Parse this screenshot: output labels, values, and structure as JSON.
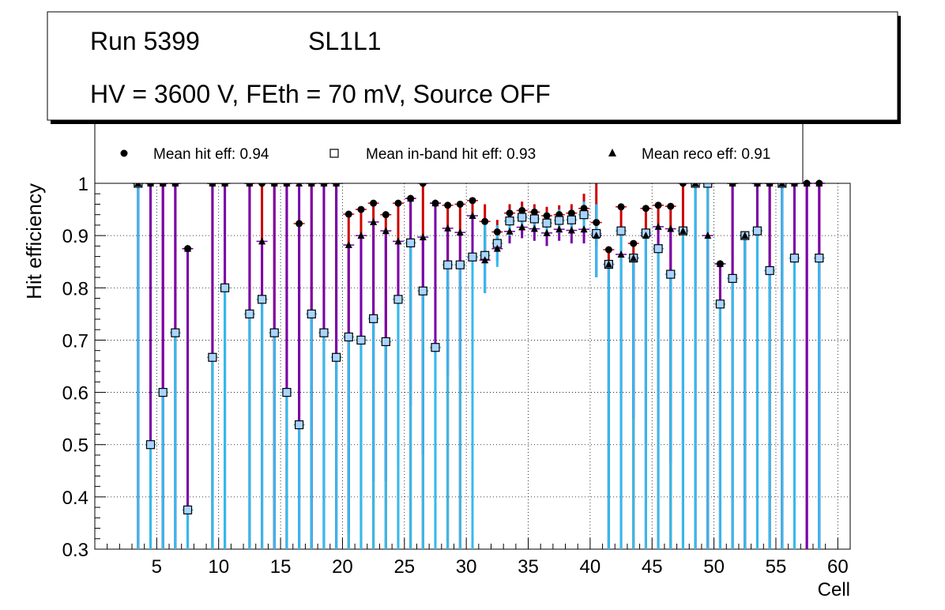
{
  "colors": {
    "hit_error": "#cc0000",
    "inband_error": "#33bbee",
    "reco_error": "#7700aa",
    "marker": "#000000",
    "inband_fill": "#aad4ff",
    "grid": "#000000"
  },
  "chart_data": {
    "type": "scatter",
    "title_lines": [
      "Run 5399",
      "SL1L1",
      "HV = 3600 V, FEth = 70 mV, Source OFF"
    ],
    "xlabel": "Cell",
    "ylabel": "Hit efficiency",
    "xlim": [
      0,
      61
    ],
    "ylim": [
      0.3,
      1.0
    ],
    "xticks": [
      5,
      10,
      15,
      20,
      25,
      30,
      35,
      40,
      45,
      50,
      55,
      60
    ],
    "yticks": [
      0.3,
      0.4,
      0.5,
      0.6,
      0.7,
      0.8,
      0.9,
      1.0
    ],
    "ytick_labels": [
      "0.3",
      "0.4",
      "0.5",
      "0.6",
      "0.7",
      "0.8",
      "0.9",
      "1"
    ],
    "grid": true,
    "legend": {
      "placement": "top",
      "entries": [
        {
          "marker": "circle",
          "label": "Mean hit  eff: 0.94"
        },
        {
          "marker": "open-square",
          "label": "Mean in-band hit eff: 0.93"
        },
        {
          "marker": "triangle",
          "label": "Mean reco eff: 0.91"
        }
      ]
    },
    "series": [
      {
        "name": "hit efficiency",
        "marker": "circle",
        "points": [
          {
            "x": 3.5,
            "y": 1.0,
            "lo": 0.3
          },
          {
            "x": 4.5,
            "y": 1.0,
            "lo": 0.3
          },
          {
            "x": 5.5,
            "y": 1.0,
            "lo": 0.3
          },
          {
            "x": 6.5,
            "y": 1.0,
            "lo": 0.3
          },
          {
            "x": 7.5,
            "y": 0.875,
            "lo": 0.3
          },
          {
            "x": 9.5,
            "y": 1.0,
            "lo": 0.3
          },
          {
            "x": 10.5,
            "y": 1.0,
            "lo": 0.3
          },
          {
            "x": 12.5,
            "y": 1.0,
            "lo": 0.3
          },
          {
            "x": 13.5,
            "y": 1.0,
            "lo": 0.3
          },
          {
            "x": 14.5,
            "y": 1.0,
            "lo": 0.3
          },
          {
            "x": 15.5,
            "y": 1.0,
            "lo": 0.3
          },
          {
            "x": 16.5,
            "y": 0.923,
            "lo": 0.3
          },
          {
            "x": 17.5,
            "y": 1.0,
            "lo": 0.3
          },
          {
            "x": 18.5,
            "y": 1.0,
            "lo": 0.3
          },
          {
            "x": 19.5,
            "y": 1.0,
            "lo": 0.3
          },
          {
            "x": 20.5,
            "y": 0.941,
            "lo": 0.3
          },
          {
            "x": 21.5,
            "y": 0.95,
            "lo": 0.3
          },
          {
            "x": 22.5,
            "y": 0.962,
            "lo": 0.3
          },
          {
            "x": 23.5,
            "y": 0.94,
            "lo": 0.3
          },
          {
            "x": 24.5,
            "y": 0.962,
            "lo": 0.3
          },
          {
            "x": 25.5,
            "y": 0.971,
            "lo": 0.3
          },
          {
            "x": 26.5,
            "y": 1.0,
            "lo": 0.3
          },
          {
            "x": 27.5,
            "y": 0.962,
            "lo": 0.3
          },
          {
            "x": 28.5,
            "y": 0.958,
            "lo": 0.3
          },
          {
            "x": 29.5,
            "y": 0.96,
            "lo": 0.3
          },
          {
            "x": 30.5,
            "y": 0.967,
            "lo": 0.3
          },
          {
            "x": 31.5,
            "y": 0.927,
            "lo": 0.86,
            "hi": 0.96
          },
          {
            "x": 32.5,
            "y": 0.907,
            "lo": 0.88,
            "hi": 0.93
          },
          {
            "x": 33.5,
            "y": 0.943,
            "lo": 0.92,
            "hi": 0.96
          },
          {
            "x": 34.5,
            "y": 0.948,
            "lo": 0.93,
            "hi": 0.965
          },
          {
            "x": 35.5,
            "y": 0.945,
            "lo": 0.925,
            "hi": 0.96
          },
          {
            "x": 36.5,
            "y": 0.938,
            "lo": 0.92,
            "hi": 0.955
          },
          {
            "x": 37.5,
            "y": 0.94,
            "lo": 0.92,
            "hi": 0.958
          },
          {
            "x": 38.5,
            "y": 0.943,
            "lo": 0.925,
            "hi": 0.96
          },
          {
            "x": 39.5,
            "y": 0.952,
            "lo": 0.93,
            "hi": 0.98
          },
          {
            "x": 40.5,
            "y": 0.925,
            "lo": 0.88,
            "hi": 1.0
          },
          {
            "x": 41.5,
            "y": 0.873,
            "lo": 0.3
          },
          {
            "x": 42.5,
            "y": 0.955,
            "lo": 0.3
          },
          {
            "x": 43.5,
            "y": 0.885,
            "lo": 0.3
          },
          {
            "x": 44.5,
            "y": 0.952,
            "lo": 0.3
          },
          {
            "x": 45.5,
            "y": 0.958,
            "lo": 0.3
          },
          {
            "x": 46.5,
            "y": 0.956,
            "lo": 0.3
          },
          {
            "x": 47.5,
            "y": 1.0,
            "lo": 0.3
          },
          {
            "x": 48.5,
            "y": 1.0,
            "lo": 0.3
          },
          {
            "x": 49.5,
            "y": 1.0,
            "lo": 0.3
          },
          {
            "x": 50.5,
            "y": 0.846,
            "lo": 0.3
          },
          {
            "x": 51.5,
            "y": 1.0,
            "lo": 0.3
          },
          {
            "x": 52.5,
            "y": 0.9,
            "lo": 0.3
          },
          {
            "x": 53.5,
            "y": 1.0,
            "lo": 0.3
          },
          {
            "x": 54.5,
            "y": 1.0,
            "lo": 0.3
          },
          {
            "x": 55.5,
            "y": 1.0,
            "lo": 0.3
          },
          {
            "x": 56.5,
            "y": 1.0,
            "lo": 0.3
          },
          {
            "x": 57.5,
            "y": 1.0,
            "lo": 0.3
          },
          {
            "x": 58.5,
            "y": 1.0,
            "lo": 0.3
          }
        ]
      },
      {
        "name": "in-band hit efficiency",
        "marker": "open-square",
        "points": [
          {
            "x": 3.5,
            "y": 1.0,
            "lo": 0.3
          },
          {
            "x": 4.5,
            "y": 0.5,
            "lo": 0.3
          },
          {
            "x": 5.5,
            "y": 0.6,
            "lo": 0.3
          },
          {
            "x": 6.5,
            "y": 0.714,
            "lo": 0.3
          },
          {
            "x": 7.5,
            "y": 0.375,
            "lo": 0.3
          },
          {
            "x": 9.5,
            "y": 0.667,
            "lo": 0.3
          },
          {
            "x": 10.5,
            "y": 0.8,
            "lo": 0.3
          },
          {
            "x": 12.5,
            "y": 0.75,
            "lo": 0.3
          },
          {
            "x": 13.5,
            "y": 0.778,
            "lo": 0.3
          },
          {
            "x": 14.5,
            "y": 0.714,
            "lo": 0.3
          },
          {
            "x": 15.5,
            "y": 0.6,
            "lo": 0.3
          },
          {
            "x": 16.5,
            "y": 0.538,
            "lo": 0.3
          },
          {
            "x": 17.5,
            "y": 0.75,
            "lo": 0.3
          },
          {
            "x": 18.5,
            "y": 0.714,
            "lo": 0.3
          },
          {
            "x": 19.5,
            "y": 0.667,
            "lo": 0.3
          },
          {
            "x": 20.5,
            "y": 0.706,
            "lo": 0.3
          },
          {
            "x": 21.5,
            "y": 0.7,
            "lo": 0.3
          },
          {
            "x": 22.5,
            "y": 0.741,
            "lo": 0.3
          },
          {
            "x": 23.5,
            "y": 0.697,
            "lo": 0.3
          },
          {
            "x": 24.5,
            "y": 0.778,
            "lo": 0.3
          },
          {
            "x": 25.5,
            "y": 0.886,
            "lo": 0.3
          },
          {
            "x": 26.5,
            "y": 0.794,
            "lo": 0.3
          },
          {
            "x": 27.5,
            "y": 0.686,
            "lo": 0.3
          },
          {
            "x": 28.5,
            "y": 0.844,
            "lo": 0.3
          },
          {
            "x": 29.5,
            "y": 0.844,
            "lo": 0.3
          },
          {
            "x": 30.5,
            "y": 0.859,
            "lo": 0.3
          },
          {
            "x": 31.5,
            "y": 0.862,
            "lo": 0.79,
            "hi": 0.93
          },
          {
            "x": 32.5,
            "y": 0.885,
            "lo": 0.84,
            "hi": 0.92
          },
          {
            "x": 33.5,
            "y": 0.928,
            "lo": 0.9,
            "hi": 0.95
          },
          {
            "x": 34.5,
            "y": 0.935,
            "lo": 0.91,
            "hi": 0.955
          },
          {
            "x": 35.5,
            "y": 0.932,
            "lo": 0.91,
            "hi": 0.952
          },
          {
            "x": 36.5,
            "y": 0.924,
            "lo": 0.9,
            "hi": 0.945
          },
          {
            "x": 37.5,
            "y": 0.929,
            "lo": 0.905,
            "hi": 0.95
          },
          {
            "x": 38.5,
            "y": 0.93,
            "lo": 0.905,
            "hi": 0.95
          },
          {
            "x": 39.5,
            "y": 0.94,
            "lo": 0.91,
            "hi": 0.965
          },
          {
            "x": 40.5,
            "y": 0.904,
            "lo": 0.82,
            "hi": 0.96
          },
          {
            "x": 41.5,
            "y": 0.845,
            "lo": 0.3
          },
          {
            "x": 42.5,
            "y": 0.909,
            "lo": 0.3
          },
          {
            "x": 43.5,
            "y": 0.857,
            "lo": 0.3
          },
          {
            "x": 44.5,
            "y": 0.905,
            "lo": 0.3
          },
          {
            "x": 45.5,
            "y": 0.875,
            "lo": 0.3
          },
          {
            "x": 46.5,
            "y": 0.826,
            "lo": 0.3
          },
          {
            "x": 47.5,
            "y": 0.909,
            "lo": 0.3
          },
          {
            "x": 48.5,
            "y": 1.0,
            "lo": 0.3
          },
          {
            "x": 49.5,
            "y": 1.0,
            "lo": 0.3
          },
          {
            "x": 50.5,
            "y": 0.769,
            "lo": 0.3
          },
          {
            "x": 51.5,
            "y": 0.818,
            "lo": 0.3
          },
          {
            "x": 52.5,
            "y": 0.9,
            "lo": 0.3
          },
          {
            "x": 53.5,
            "y": 0.909,
            "lo": 0.3
          },
          {
            "x": 54.5,
            "y": 0.833,
            "lo": 0.3
          },
          {
            "x": 55.5,
            "y": 1.0,
            "lo": 0.3
          },
          {
            "x": 56.5,
            "y": 0.857,
            "lo": 0.3
          },
          {
            "x": 58.5,
            "y": 0.857,
            "lo": 0.3
          }
        ]
      },
      {
        "name": "reco efficiency",
        "marker": "triangle",
        "points": [
          {
            "x": 3.5,
            "y": 1.0,
            "lo": 0.3
          },
          {
            "x": 4.5,
            "y": 1.0,
            "lo": 0.3
          },
          {
            "x": 5.5,
            "y": 1.0,
            "lo": 0.3
          },
          {
            "x": 6.5,
            "y": 1.0,
            "lo": 0.3
          },
          {
            "x": 7.5,
            "y": 0.875,
            "lo": 0.3
          },
          {
            "x": 9.5,
            "y": 1.0,
            "lo": 0.3
          },
          {
            "x": 10.5,
            "y": 1.0,
            "lo": 0.3
          },
          {
            "x": 12.5,
            "y": 1.0,
            "lo": 0.3
          },
          {
            "x": 13.5,
            "y": 0.889,
            "lo": 0.3
          },
          {
            "x": 14.5,
            "y": 1.0,
            "lo": 0.3
          },
          {
            "x": 15.5,
            "y": 1.0,
            "lo": 0.3
          },
          {
            "x": 16.5,
            "y": 1.0,
            "lo": 0.3
          },
          {
            "x": 17.5,
            "y": 1.0,
            "lo": 0.3
          },
          {
            "x": 18.5,
            "y": 1.0,
            "lo": 0.3
          },
          {
            "x": 19.5,
            "y": 1.0,
            "lo": 0.3
          },
          {
            "x": 20.5,
            "y": 0.882,
            "lo": 0.33
          },
          {
            "x": 21.5,
            "y": 0.9,
            "lo": 0.355
          },
          {
            "x": 22.5,
            "y": 0.926,
            "lo": 0.43
          },
          {
            "x": 23.5,
            "y": 0.909,
            "lo": 0.43
          },
          {
            "x": 24.5,
            "y": 0.889,
            "lo": 0.455
          },
          {
            "x": 25.5,
            "y": 0.971,
            "lo": 0.575
          },
          {
            "x": 26.5,
            "y": 0.897,
            "lo": 0.48
          },
          {
            "x": 27.5,
            "y": 0.962,
            "lo": 0.48
          },
          {
            "x": 28.5,
            "y": 0.914,
            "lo": 0.632
          },
          {
            "x": 29.5,
            "y": 0.906,
            "lo": 0.642
          },
          {
            "x": 30.5,
            "y": 0.938,
            "lo": 0.695
          },
          {
            "x": 31.5,
            "y": 0.853,
            "lo": 0.79,
            "hi": 0.91
          },
          {
            "x": 32.5,
            "y": 0.875,
            "lo": 0.85,
            "hi": 0.9
          },
          {
            "x": 33.5,
            "y": 0.908,
            "lo": 0.885,
            "hi": 0.93
          },
          {
            "x": 34.5,
            "y": 0.916,
            "lo": 0.895,
            "hi": 0.935
          },
          {
            "x": 35.5,
            "y": 0.913,
            "lo": 0.89,
            "hi": 0.933
          },
          {
            "x": 36.5,
            "y": 0.905,
            "lo": 0.88,
            "hi": 0.925
          },
          {
            "x": 37.5,
            "y": 0.912,
            "lo": 0.89,
            "hi": 0.932
          },
          {
            "x": 38.5,
            "y": 0.91,
            "lo": 0.885,
            "hi": 0.93
          },
          {
            "x": 39.5,
            "y": 0.912,
            "lo": 0.885,
            "hi": 0.94
          },
          {
            "x": 40.5,
            "y": 0.9,
            "lo": 0.82,
            "hi": 0.96
          },
          {
            "x": 41.5,
            "y": 0.845,
            "lo": 0.3
          },
          {
            "x": 42.5,
            "y": 0.864,
            "lo": 0.6
          },
          {
            "x": 43.5,
            "y": 0.857,
            "lo": 0.55
          },
          {
            "x": 44.5,
            "y": 0.9,
            "lo": 0.5
          },
          {
            "x": 45.5,
            "y": 0.917,
            "lo": 0.53
          },
          {
            "x": 46.5,
            "y": 0.913,
            "lo": 0.465
          },
          {
            "x": 47.5,
            "y": 0.909,
            "lo": 0.5
          },
          {
            "x": 48.5,
            "y": 1.0,
            "lo": 0.3
          },
          {
            "x": 49.5,
            "y": 0.9,
            "lo": 0.3
          },
          {
            "x": 50.5,
            "y": 0.846,
            "lo": 0.3
          },
          {
            "x": 51.5,
            "y": 1.0,
            "lo": 0.3
          },
          {
            "x": 52.5,
            "y": 0.9,
            "lo": 0.3
          },
          {
            "x": 53.5,
            "y": 1.0,
            "lo": 0.345
          },
          {
            "x": 54.5,
            "y": 1.0,
            "lo": 0.3
          },
          {
            "x": 55.5,
            "y": 1.0,
            "lo": 0.3
          },
          {
            "x": 56.5,
            "y": 1.0,
            "lo": 0.3
          },
          {
            "x": 57.5,
            "y": 1.0,
            "lo": 0.3
          },
          {
            "x": 58.5,
            "y": 1.0,
            "lo": 0.3
          }
        ]
      }
    ]
  }
}
